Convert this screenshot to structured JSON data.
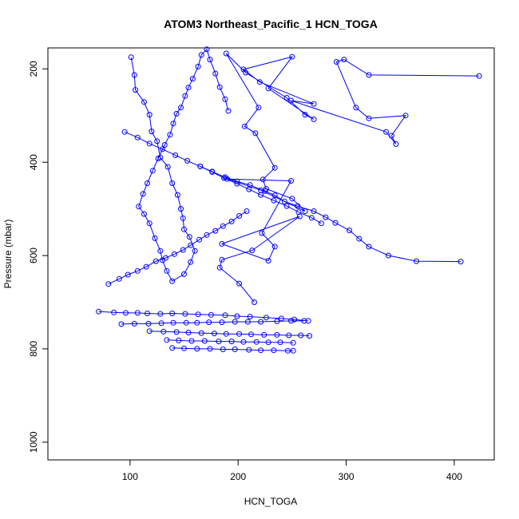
{
  "chart_data": {
    "type": "line",
    "title": "ATOM3 Northeast_Pacific_1 HCN_TOGA",
    "xlabel": "HCN_TOGA",
    "ylabel": "Pressure (mbar)",
    "xlim": [
      24,
      437
    ],
    "ylim": [
      1038,
      155
    ],
    "y_reversed": true,
    "x_ticks": [
      100,
      200,
      300,
      400
    ],
    "y_ticks": [
      200,
      400,
      600,
      800,
      1000
    ],
    "grid": false,
    "legend": "none",
    "marker": "open-circle",
    "series_color": "#0000ff",
    "series": [
      {
        "x": [
          423,
          321,
          298,
          291,
          309,
          321,
          355,
          342,
          346,
          337,
          249,
          270,
          220,
          205,
          250,
          228,
          270,
          262,
          245,
          207,
          189,
          219,
          206,
          216,
          234,
          223,
          226,
          250,
          262,
          221,
          190,
          249,
          222,
          234,
          228,
          185,
          257,
          213,
          185,
          183,
          201,
          215
        ],
        "y": [
          215,
          213,
          180,
          185,
          283,
          306,
          300,
          343,
          361,
          335,
          268,
          275,
          228,
          201,
          174,
          242,
          308,
          298,
          262,
          208,
          167,
          283,
          323,
          338,
          412,
          437,
          457,
          478,
          505,
          460,
          436,
          440,
          552,
          581,
          611,
          575,
          516,
          589,
          609,
          626,
          660,
          700
        ]
      },
      {
        "x": [
          101,
          104,
          105,
          113,
          118,
          120,
          125,
          128,
          135,
          139,
          144,
          147,
          149,
          150,
          155,
          160,
          156,
          150,
          139,
          134,
          130,
          128,
          123,
          118,
          113,
          108,
          112,
          116,
          121,
          126,
          132,
          137,
          140,
          143,
          147,
          151,
          154,
          158,
          163,
          166,
          171,
          174,
          179,
          183,
          188,
          191
        ],
        "y": [
          175,
          213,
          245,
          271,
          298,
          334,
          355,
          390,
          410,
          445,
          470,
          500,
          520,
          544,
          560,
          590,
          614,
          640,
          655,
          633,
          610,
          590,
          563,
          531,
          511,
          495,
          468,
          445,
          418,
          392,
          363,
          341,
          317,
          296,
          283,
          258,
          240,
          221,
          195,
          170,
          158,
          180,
          210,
          239,
          265,
          290
        ]
      },
      {
        "x": [
          71,
          85,
          96,
          107,
          116,
          128,
          139,
          151,
          163,
          175,
          188,
          199,
          211,
          226,
          240,
          252,
          265
        ],
        "y": [
          720,
          722,
          723,
          723,
          724,
          725,
          724,
          725,
          726,
          727,
          728,
          730,
          731,
          733,
          735,
          737,
          740
        ]
      },
      {
        "x": [
          92,
          104,
          117,
          129,
          140,
          152,
          162,
          173,
          185,
          197,
          209,
          221,
          236,
          249,
          261
        ],
        "y": [
          747,
          746,
          746,
          745,
          744,
          744,
          744,
          743,
          743,
          742,
          742,
          742,
          741,
          740,
          740
        ]
      },
      {
        "x": [
          118,
          131,
          143,
          154,
          166,
          178,
          189,
          201,
          212,
          224,
          236,
          247,
          258,
          266
        ],
        "y": [
          762,
          763,
          764,
          765,
          766,
          767,
          768,
          768,
          769,
          770,
          770,
          771,
          771,
          772
        ]
      },
      {
        "x": [
          134,
          145,
          157,
          169,
          182,
          194,
          205,
          217,
          228,
          239,
          251
        ],
        "y": [
          781,
          782,
          783,
          783,
          784,
          784,
          785,
          785,
          786,
          786,
          787
        ]
      },
      {
        "x": [
          139,
          150,
          162,
          174,
          186,
          197,
          210,
          221,
          233,
          246,
          251
        ],
        "y": [
          798,
          799,
          800,
          800,
          801,
          801,
          802,
          803,
          803,
          804,
          804
        ]
      },
      {
        "x": [
          80,
          90,
          98,
          107,
          115,
          124,
          133,
          141,
          149,
          156,
          164,
          171,
          179,
          186,
          194,
          201,
          208
        ],
        "y": [
          661,
          650,
          641,
          633,
          624,
          612,
          605,
          597,
          588,
          578,
          566,
          556,
          547,
          537,
          527,
          515,
          505
        ]
      },
      {
        "x": [
          406,
          365,
          339,
          321,
          312,
          303,
          290,
          281,
          270,
          255,
          243,
          234,
          225,
          211,
          199,
          188,
          176,
          165
        ],
        "y": [
          613,
          612,
          600,
          581,
          564,
          546,
          530,
          518,
          505,
          494,
          484,
          471,
          462,
          449,
          441,
          432,
          420,
          409
        ]
      },
      {
        "x": [
          95,
          107,
          118,
          130,
          142,
          153,
          165,
          176,
          187,
          199,
          210,
          221,
          233,
          245,
          256,
          268,
          277
        ],
        "y": [
          335,
          347,
          360,
          372,
          385,
          397,
          409,
          421,
          434,
          446,
          458,
          470,
          482,
          494,
          507,
          519,
          531
        ]
      }
    ]
  }
}
